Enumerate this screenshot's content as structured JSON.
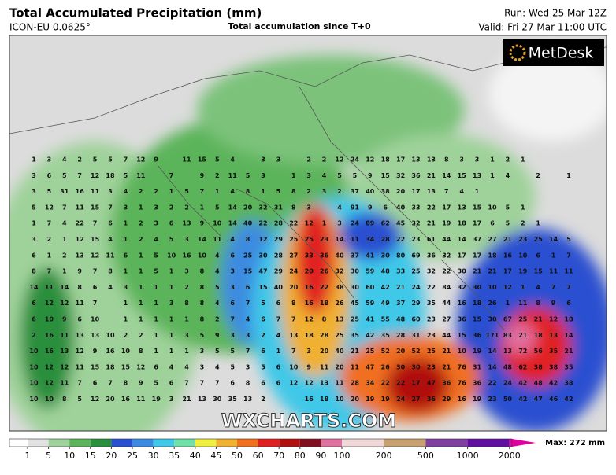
{
  "header": {
    "title": "Total Accumulated Precipitation (mm)",
    "model": "ICON-EU 0.0625°",
    "subtitle": "Total accumulation since T+0",
    "run": "Run: Wed 25 Mar 12Z",
    "valid": "Valid: Fri 27 Mar 11:00 UTC"
  },
  "logo": "MetDesk",
  "watermark": "WXCHARTS.COM",
  "map_values": [
    [
      1,
      3,
      4,
      2,
      5,
      5,
      7,
      12,
      9,
      null,
      11,
      15,
      5,
      4,
      null,
      3,
      3,
      null,
      2,
      2,
      12,
      24,
      12,
      18,
      17,
      13,
      13,
      8,
      3,
      3,
      1,
      2,
      1,
      null,
      null,
      null
    ],
    [
      3,
      6,
      5,
      7,
      12,
      18,
      5,
      11,
      null,
      7,
      null,
      9,
      2,
      11,
      5,
      3,
      null,
      1,
      3,
      4,
      5,
      5,
      9,
      15,
      32,
      36,
      21,
      14,
      15,
      13,
      1,
      4,
      null,
      2,
      null,
      1
    ],
    [
      3,
      5,
      31,
      16,
      11,
      3,
      4,
      2,
      2,
      1,
      5,
      7,
      1,
      4,
      8,
      1,
      5,
      8,
      2,
      3,
      2,
      37,
      40,
      38,
      20,
      17,
      13,
      7,
      4,
      1,
      null,
      null,
      null,
      null,
      null,
      null
    ],
    [
      5,
      12,
      7,
      11,
      15,
      7,
      3,
      1,
      3,
      2,
      2,
      1,
      5,
      14,
      20,
      32,
      31,
      8,
      3,
      null,
      4,
      91,
      9,
      6,
      40,
      33,
      22,
      17,
      13,
      15,
      10,
      5,
      1,
      null,
      null,
      null
    ],
    [
      1,
      7,
      4,
      22,
      7,
      6,
      1,
      2,
      3,
      6,
      13,
      9,
      10,
      14,
      40,
      22,
      28,
      22,
      12,
      1,
      3,
      24,
      89,
      62,
      45,
      32,
      21,
      19,
      18,
      17,
      6,
      5,
      2,
      1,
      null,
      null
    ],
    [
      3,
      2,
      1,
      12,
      15,
      4,
      1,
      2,
      4,
      5,
      3,
      14,
      11,
      4,
      8,
      12,
      29,
      25,
      25,
      23,
      14,
      11,
      34,
      28,
      22,
      23,
      61,
      44,
      14,
      37,
      27,
      21,
      23,
      25,
      14,
      5
    ],
    [
      6,
      1,
      2,
      13,
      12,
      11,
      6,
      1,
      5,
      10,
      16,
      10,
      4,
      6,
      25,
      30,
      28,
      27,
      33,
      36,
      40,
      37,
      41,
      30,
      80,
      69,
      36,
      32,
      17,
      17,
      18,
      16,
      10,
      6,
      1,
      7
    ],
    [
      8,
      7,
      1,
      9,
      7,
      8,
      1,
      1,
      5,
      1,
      3,
      8,
      4,
      3,
      15,
      47,
      29,
      24,
      20,
      26,
      32,
      30,
      59,
      48,
      33,
      25,
      32,
      22,
      30,
      21,
      21,
      17,
      19,
      15,
      11,
      11
    ],
    [
      14,
      11,
      14,
      8,
      6,
      4,
      3,
      1,
      1,
      1,
      2,
      8,
      5,
      3,
      6,
      15,
      40,
      20,
      16,
      22,
      38,
      30,
      60,
      42,
      21,
      24,
      22,
      84,
      32,
      30,
      10,
      12,
      1,
      4,
      7,
      7
    ],
    [
      6,
      12,
      12,
      11,
      7,
      null,
      1,
      1,
      1,
      3,
      8,
      8,
      4,
      6,
      7,
      5,
      6,
      8,
      16,
      18,
      26,
      45,
      59,
      49,
      37,
      29,
      35,
      44,
      16,
      18,
      26,
      1,
      11,
      8,
      9,
      6
    ],
    [
      6,
      10,
      9,
      6,
      10,
      null,
      1,
      1,
      1,
      1,
      1,
      8,
      2,
      7,
      4,
      6,
      7,
      7,
      12,
      8,
      13,
      25,
      41,
      55,
      48,
      60,
      23,
      27,
      36,
      15,
      30,
      67,
      25,
      21,
      12,
      18
    ],
    [
      2,
      16,
      11,
      13,
      13,
      10,
      2,
      2,
      1,
      1,
      3,
      5,
      9,
      3,
      3,
      2,
      4,
      13,
      18,
      28,
      25,
      35,
      42,
      35,
      28,
      31,
      23,
      44,
      15,
      36,
      171,
      83,
      21,
      18,
      13,
      14
    ],
    [
      10,
      16,
      13,
      12,
      9,
      16,
      10,
      8,
      1,
      1,
      1,
      3,
      5,
      5,
      7,
      6,
      1,
      7,
      3,
      20,
      40,
      21,
      25,
      52,
      20,
      52,
      25,
      21,
      10,
      19,
      14,
      13,
      72,
      56,
      35,
      21
    ],
    [
      10,
      12,
      12,
      11,
      15,
      18,
      15,
      12,
      6,
      4,
      4,
      3,
      4,
      5,
      3,
      5,
      6,
      10,
      9,
      11,
      20,
      11,
      47,
      26,
      30,
      30,
      23,
      21,
      76,
      31,
      14,
      48,
      62,
      38,
      38,
      35
    ],
    [
      10,
      12,
      11,
      7,
      6,
      7,
      8,
      9,
      5,
      6,
      7,
      7,
      7,
      6,
      8,
      6,
      6,
      12,
      12,
      13,
      11,
      28,
      34,
      22,
      22,
      17,
      47,
      36,
      76,
      36,
      22,
      24,
      42,
      48,
      42,
      38
    ],
    [
      10,
      10,
      8,
      5,
      12,
      20,
      16,
      11,
      19,
      3,
      21,
      13,
      30,
      35,
      13,
      2,
      null,
      null,
      16,
      18,
      10,
      20,
      19,
      19,
      24,
      27,
      36,
      29,
      16,
      19,
      23,
      50,
      42,
      47,
      46,
      42
    ]
  ],
  "legend": {
    "levels": [
      1,
      5,
      10,
      15,
      20,
      25,
      30,
      35,
      40,
      45,
      50,
      60,
      70,
      80,
      90,
      100,
      200,
      500,
      1000,
      2000
    ],
    "colors": [
      "#ffffff",
      "#e2e2e2",
      "#9fd29a",
      "#5cb45a",
      "#2a8f3c",
      "#2a4fd0",
      "#3d8be0",
      "#40c8e8",
      "#6ee0a8",
      "#f0f040",
      "#f0b030",
      "#f07020",
      "#e02020",
      "#b01010",
      "#801020",
      "#e070a0",
      "#f0d8d8",
      "#c8a070",
      "#8040a0",
      "#6010a0",
      "#e000a0"
    ],
    "max_label": "Max: 272 mm"
  }
}
